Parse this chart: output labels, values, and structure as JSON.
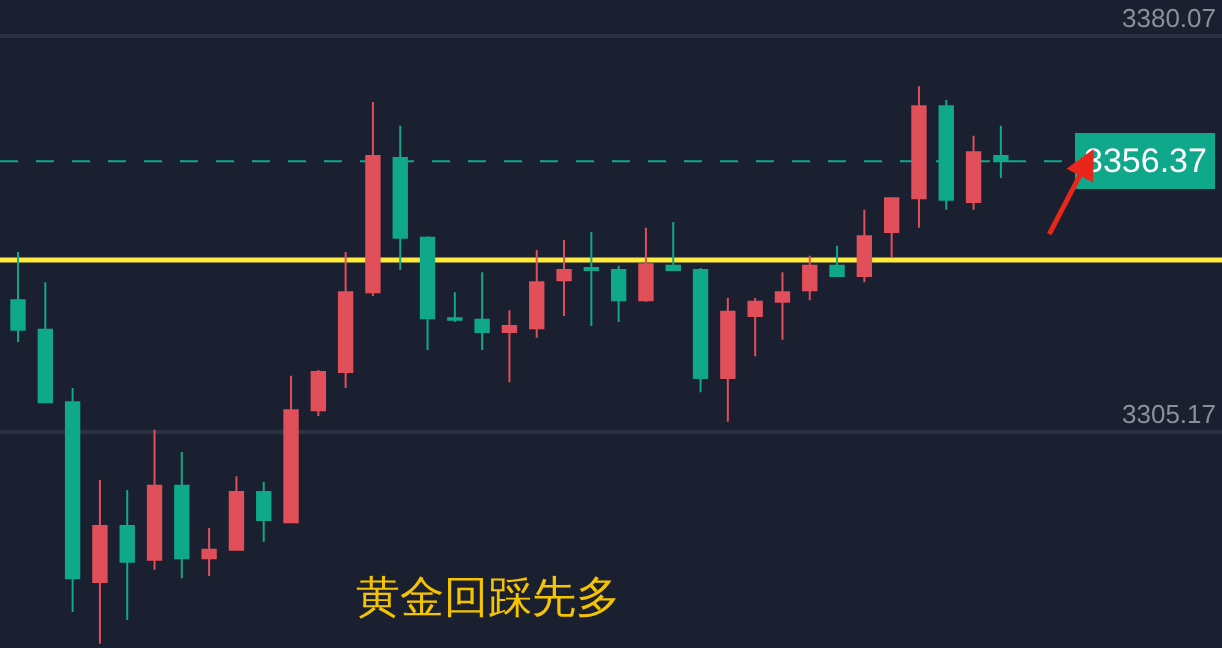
{
  "chart_data": {
    "type": "candlestick",
    "categories": [
      null,
      null,
      null,
      null,
      null,
      null,
      null,
      null,
      null,
      null,
      null,
      null,
      null,
      null,
      null,
      null,
      null,
      null,
      null,
      null,
      null,
      null,
      null,
      null,
      null,
      null,
      null,
      null,
      null,
      null,
      null,
      null,
      null,
      null,
      null,
      null,
      null
    ],
    "ohlc": [
      [
        3330.1,
        3339.2,
        3322.2,
        3324.5
      ],
      [
        3324.5,
        3333.5,
        3310.8,
        3310.8
      ],
      [
        3310.8,
        3313.5,
        3271.1,
        3277.5
      ],
      [
        3276.8,
        3296.1,
        3265.1,
        3287.4
      ],
      [
        3287.4,
        3294.2,
        3269.6,
        3280.6
      ],
      [
        3281.0,
        3305.6,
        3279.1,
        3295.0
      ],
      [
        3295.0,
        3301.4,
        3277.5,
        3281.3
      ],
      [
        3281.3,
        3287.0,
        3277.9,
        3282.9
      ],
      [
        3282.9,
        3296.8,
        3282.9,
        3293.8
      ],
      [
        3293.8,
        3295.7,
        3284.4,
        3288.5
      ],
      [
        3288.1,
        3315.8,
        3288.1,
        3309.3
      ],
      [
        3309.3,
        3316.9,
        3308.2,
        3316.5
      ],
      [
        3316.5,
        3339.2,
        3313.5,
        3331.6
      ],
      [
        3331.6,
        3367.6,
        3330.9,
        3357.4
      ],
      [
        3357.0,
        3363.1,
        3335.8,
        3341.9
      ],
      [
        3341.9,
        3342.2,
        3320.7,
        3326.7
      ],
      [
        3326.7,
        3331.6,
        3326.0,
        3326.4
      ],
      [
        3326.4,
        3335.4,
        3320.7,
        3324.1
      ],
      [
        3324.1,
        3328.2,
        3314.6,
        3325.2
      ],
      [
        3324.8,
        3339.6,
        3323.0,
        3333.5
      ],
      [
        3333.9,
        3341.5,
        3327.1,
        3335.8
      ],
      [
        3336.2,
        3343.0,
        3325.2,
        3335.8
      ],
      [
        3335.8,
        3336.6,
        3326.0,
        3330.1
      ],
      [
        3330.1,
        3343.8,
        3329.8,
        3336.9
      ],
      [
        3336.6,
        3344.9,
        3335.8,
        3335.8
      ],
      [
        3335.8,
        3336.2,
        3312.7,
        3315.4
      ],
      [
        3315.4,
        3330.5,
        3307.1,
        3327.9
      ],
      [
        3327.1,
        3330.5,
        3319.5,
        3329.8
      ],
      [
        3329.8,
        3335.4,
        3322.6,
        3331.6
      ],
      [
        3332.0,
        3338.5,
        3330.1,
        3336.6
      ],
      [
        3336.6,
        3340.4,
        3334.7,
        3334.7
      ],
      [
        3334.7,
        3347.2,
        3333.5,
        3342.2
      ],
      [
        3343.0,
        3349.4,
        3338.1,
        3349.4
      ],
      [
        3349.4,
        3370.6,
        3343.8,
        3366.8
      ],
      [
        3366.8,
        3368.0,
        3347.2,
        3349.1
      ],
      [
        3348.7,
        3361.2,
        3347.2,
        3358.1
      ],
      [
        3357.4,
        3363.1,
        3353.2,
        3356.37
      ]
    ],
    "colors": [
      "#0fa88a",
      "#0fa88a",
      "#0fa88a",
      "#e04f5a",
      "#0fa88a",
      "#e04f5a",
      "#0fa88a",
      "#e04f5a",
      "#e04f5a",
      "#0fa88a",
      "#e04f5a",
      "#e04f5a",
      "#e04f5a",
      "#e04f5a",
      "#0fa88a",
      "#0fa88a",
      "#0fa88a",
      "#0fa88a",
      "#e04f5a",
      "#e04f5a",
      "#e04f5a",
      "#0fa88a",
      "#0fa88a",
      "#e04f5a",
      "#0fa88a",
      "#0fa88a",
      "#e04f5a",
      "#e04f5a",
      "#e04f5a",
      "#e04f5a",
      "#0fa88a",
      "#e04f5a",
      "#e04f5a",
      "#e04f5a",
      "#0fa88a",
      "#e04f5a",
      "#0fa88a"
    ],
    "ylim": [
      3264.3,
      3386.9
    ],
    "yticks": [
      3305.17,
      3380.07
    ],
    "tick_labels": "y",
    "grid": "y",
    "ref_lines": [
      {
        "axis": "y",
        "value": 3337.7,
        "color": "#ffeb3b"
      },
      {
        "axis": "y",
        "value": 3356.37,
        "label": "3356.37",
        "color": "#0fa88a",
        "line_style": "dashed"
      }
    ],
    "annotations": [
      "黄金回踩先多"
    ]
  }
}
